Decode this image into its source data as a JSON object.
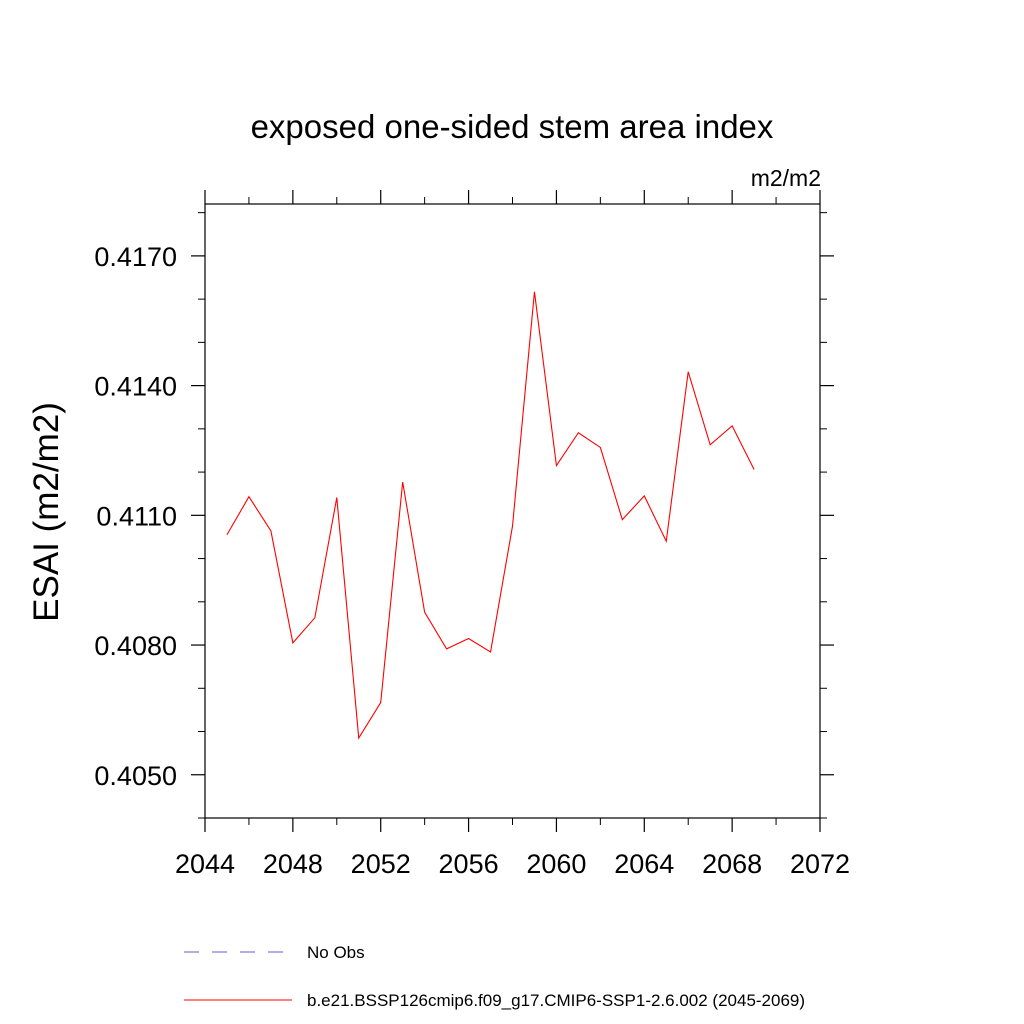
{
  "chart_data": {
    "type": "line",
    "title": "exposed one-sided stem area index",
    "units": "m2/m2",
    "xlabel": "",
    "ylabel": "ESAI  (m2/m2)",
    "xlim": [
      2044,
      2072
    ],
    "ylim": [
      0.404,
      0.4182
    ],
    "x_ticks": [
      2044,
      2048,
      2052,
      2056,
      2060,
      2064,
      2068,
      2072
    ],
    "x_minor_step": 2,
    "y_ticks": [
      0.405,
      0.408,
      0.411,
      0.414,
      0.417
    ],
    "y_tick_labels": [
      "0.4050",
      "0.4080",
      "0.4110",
      "0.4140",
      "0.4170"
    ],
    "y_minor_step": 0.001,
    "grid": false,
    "legend_position": "bottom",
    "series": [
      {
        "name": "No Obs",
        "color": "#6a5acd",
        "dash": "dashed",
        "x": [],
        "y": []
      },
      {
        "name": "b.e21.BSSP126cmip6.f09_g17.CMIP6-SSP1-2.6.002 (2045-2069)",
        "color": "#ff0000",
        "dash": "solid",
        "x": [
          2045,
          2046,
          2047,
          2048,
          2049,
          2050,
          2051,
          2052,
          2053,
          2054,
          2055,
          2056,
          2057,
          2058,
          2059,
          2060,
          2061,
          2062,
          2063,
          2064,
          2065,
          2066,
          2067,
          2068,
          2069
        ],
        "y": [
          0.41055,
          0.41143,
          0.41064,
          0.40805,
          0.40863,
          0.41141,
          0.40585,
          0.40667,
          0.41177,
          0.40876,
          0.40791,
          0.40815,
          0.40784,
          0.41075,
          0.41617,
          0.41215,
          0.41291,
          0.41257,
          0.4109,
          0.41145,
          0.4104,
          0.41432,
          0.41263,
          0.41307,
          0.41206
        ]
      }
    ]
  }
}
